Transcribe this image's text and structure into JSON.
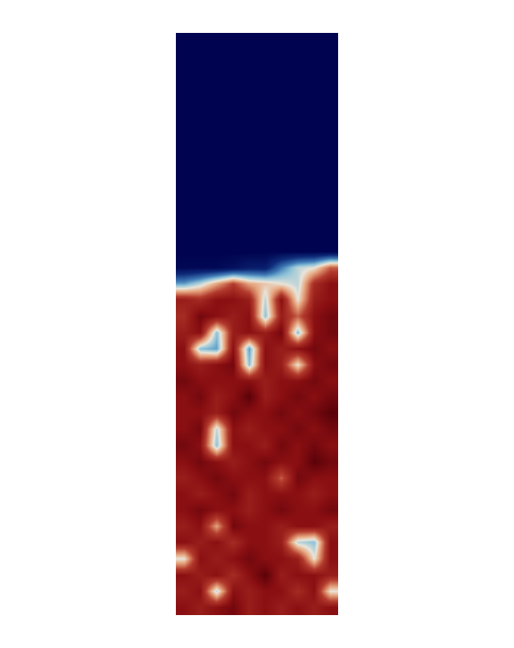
{
  "chart_data": {
    "type": "heatmap",
    "tick_labels": false,
    "zlim": [
      0,
      1
    ],
    "cells": [
      [
        0,
        0,
        0,
        0,
        0,
        0,
        0,
        0,
        0,
        0
      ],
      [
        0,
        0,
        0,
        0,
        0,
        0,
        0,
        0,
        0,
        0
      ],
      [
        0,
        0,
        0,
        0,
        0,
        0,
        0,
        0,
        0,
        0
      ],
      [
        0,
        0,
        0,
        0,
        0,
        0,
        0,
        0,
        0,
        0
      ],
      [
        0,
        0,
        0,
        0,
        0,
        0,
        0,
        0,
        0,
        0
      ],
      [
        0,
        0,
        0,
        0,
        0,
        0,
        0,
        0,
        0,
        0
      ],
      [
        0,
        0,
        0,
        0,
        0,
        0,
        0,
        0,
        0,
        0
      ],
      [
        0,
        0,
        0,
        0,
        0,
        0,
        0,
        0,
        0,
        0
      ],
      [
        0,
        0,
        0,
        0,
        0,
        0,
        0,
        0,
        0,
        0
      ],
      [
        0,
        0,
        0,
        0,
        0,
        0,
        0,
        0,
        0,
        0
      ],
      [
        0,
        0,
        0,
        0,
        0,
        0,
        0,
        0,
        0,
        0
      ],
      [
        0,
        0,
        0,
        0,
        0,
        0,
        0,
        0,
        0,
        0
      ],
      [
        0,
        0,
        0,
        0,
        0,
        0,
        0,
        0,
        0,
        0
      ],
      [
        0,
        0,
        0,
        0,
        0,
        0,
        0,
        0,
        0,
        0
      ],
      [
        0.02,
        0.02,
        0.02,
        0.05,
        0.1,
        0.1,
        0.3,
        0.45,
        0.5,
        0.7
      ],
      [
        0.35,
        0.45,
        0.6,
        0.75,
        0.6,
        0.55,
        0.5,
        0.45,
        0.8,
        0.9
      ],
      [
        0.85,
        0.8,
        0.9,
        0.9,
        0.85,
        0.45,
        0.9,
        0.5,
        0.85,
        0.9
      ],
      [
        0.8,
        0.95,
        0.9,
        0.85,
        0.9,
        0.4,
        0.85,
        0.7,
        0.9,
        0.95
      ],
      [
        0.85,
        0.9,
        0.4,
        0.85,
        0.9,
        0.85,
        0.95,
        0.4,
        0.9,
        0.95
      ],
      [
        0.9,
        0.4,
        0.35,
        0.9,
        0.35,
        0.9,
        0.85,
        0.9,
        0.95,
        0.9
      ],
      [
        0.9,
        0.85,
        0.9,
        0.95,
        0.4,
        0.9,
        0.85,
        0.5,
        0.9,
        0.95
      ],
      [
        0.95,
        0.9,
        0.9,
        0.9,
        0.9,
        0.85,
        0.9,
        0.9,
        0.95,
        0.9
      ],
      [
        0.9,
        0.95,
        0.85,
        0.9,
        1.0,
        0.85,
        0.9,
        0.95,
        0.9,
        0.95
      ],
      [
        0.9,
        0.9,
        0.85,
        0.95,
        0.9,
        0.9,
        0.95,
        0.9,
        0.95,
        1.0
      ],
      [
        0.9,
        0.95,
        0.45,
        0.9,
        0.85,
        0.9,
        0.9,
        0.95,
        0.9,
        0.95
      ],
      [
        0.95,
        0.9,
        0.4,
        0.9,
        0.9,
        0.85,
        0.95,
        0.9,
        0.95,
        0.9
      ],
      [
        0.9,
        0.95,
        0.9,
        0.85,
        0.9,
        0.95,
        0.9,
        0.9,
        1.0,
        0.95
      ],
      [
        0.85,
        0.9,
        0.95,
        0.9,
        0.9,
        0.9,
        0.7,
        0.95,
        0.9,
        0.9
      ],
      [
        0.9,
        0.85,
        0.9,
        0.95,
        0.85,
        0.9,
        0.9,
        0.9,
        0.85,
        0.9
      ],
      [
        0.9,
        0.95,
        0.9,
        0.9,
        0.85,
        0.9,
        0.95,
        0.9,
        0.9,
        0.95
      ],
      [
        0.85,
        0.9,
        0.6,
        0.95,
        0.9,
        0.9,
        0.85,
        0.9,
        0.9,
        0.85
      ],
      [
        0.9,
        0.85,
        0.9,
        0.8,
        0.9,
        0.9,
        0.85,
        0.45,
        0.4,
        0.9
      ],
      [
        0.5,
        0.9,
        0.85,
        0.9,
        0.95,
        0.9,
        0.9,
        0.85,
        0.5,
        0.9
      ],
      [
        0.9,
        0.85,
        0.9,
        0.8,
        0.9,
        1.0,
        0.85,
        0.9,
        0.9,
        0.85
      ],
      [
        0.85,
        0.9,
        0.45,
        0.9,
        0.85,
        0.9,
        0.9,
        0.8,
        0.9,
        0.5
      ],
      [
        0.9,
        0.85,
        0.9,
        0.95,
        0.85,
        0.9,
        0.85,
        0.9,
        0.85,
        0.9
      ]
    ]
  }
}
